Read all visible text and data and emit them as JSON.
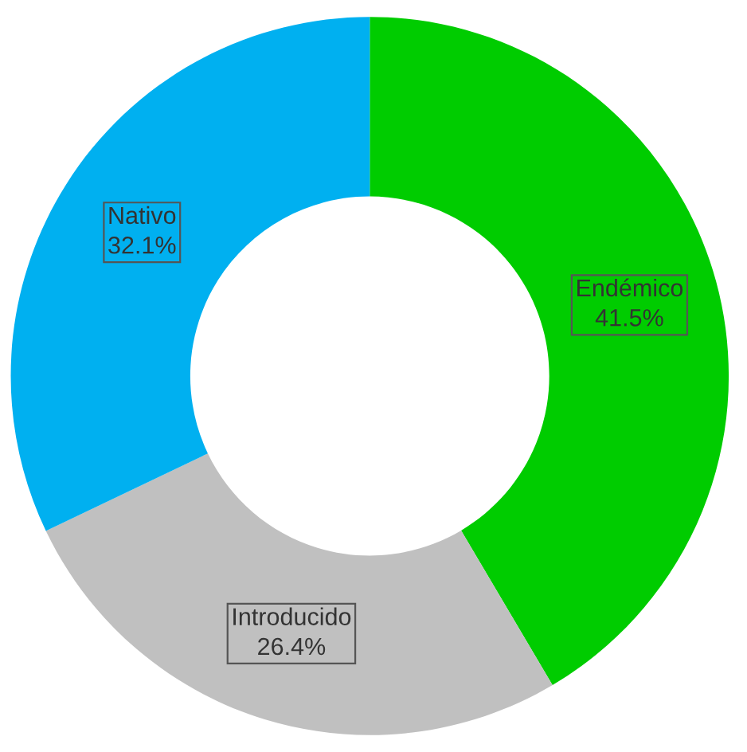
{
  "chart_data": {
    "type": "donut",
    "categories": [
      "Endémico",
      "Introducido",
      "Nativo"
    ],
    "values": [
      41.5,
      26.4,
      32.1
    ],
    "colors": [
      "#00cc00",
      "#c0c0c0",
      "#00b0f0"
    ],
    "value_labels": [
      "41.5%",
      "26.4%",
      "32.1%"
    ],
    "legend": false
  }
}
